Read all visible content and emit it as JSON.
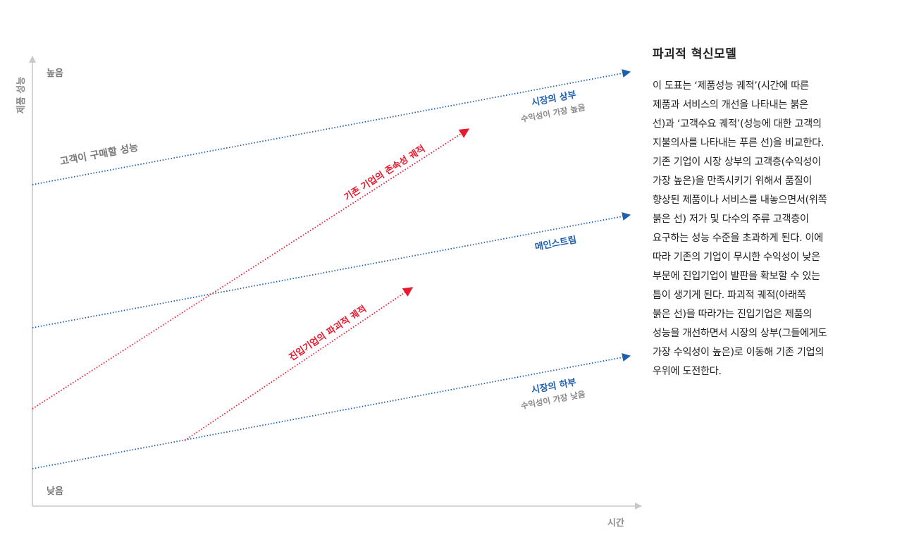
{
  "diagram": {
    "y_axis_label": "제품 성능",
    "x_axis_label": "시간",
    "high_label": "높음",
    "low_label": "낮음",
    "customer_line_label": "고객이 구매할 성능",
    "top_market_label": "시장의 상부",
    "top_market_sub": "수익성이 가장 높음",
    "mainstream_label": "메인스트림",
    "bottom_market_label": "시장의 하부",
    "bottom_market_sub": "수익성이 가장 낮음",
    "sustaining_label": "기존 기업의 존속성 궤적",
    "disruptive_label": "진입기업의 파괴적 궤적",
    "colors": {
      "blue": "#1f5fad",
      "red": "#e8192c",
      "axis": "#c8c8c8",
      "gray_text": "#7a7a7a"
    }
  },
  "panel": {
    "title": "파괴적 혁신모델",
    "body": "이 도표는 ‘제품성능 궤적’(시간에 따른\n제품과 서비스의 개선을 나타내는 붉은\n선)과 ‘고객수요 궤적’(성능에 대한 고객의\n지불의사를 나타내는 푸른 선)을 비교한다.\n기존 기업이 시장 상부의 고객층(수익성이\n가장 높은)을 만족시키기 위해서 품질이\n향상된 제품이나 서비스를 내놓으면서(위쪽\n붉은 선) 저가 및 다수의 주류 고객층이\n요구하는 성능 수준을 초과하게 된다. 이에\n따라 기존의 기업이 무시한 수익성이 낮은\n부문에 진입기업이 발판을 확보할 수 있는\n틈이 생기게 된다. 파괴적 궤적(아래쪽\n붉은 선)을 따라가는 진입기업은 제품의\n성능을 개선하면서 시장의 상부(그들에게도\n가장 수익성이 높은)로 이동해 기존 기업의\n우위에 도전한다."
  }
}
